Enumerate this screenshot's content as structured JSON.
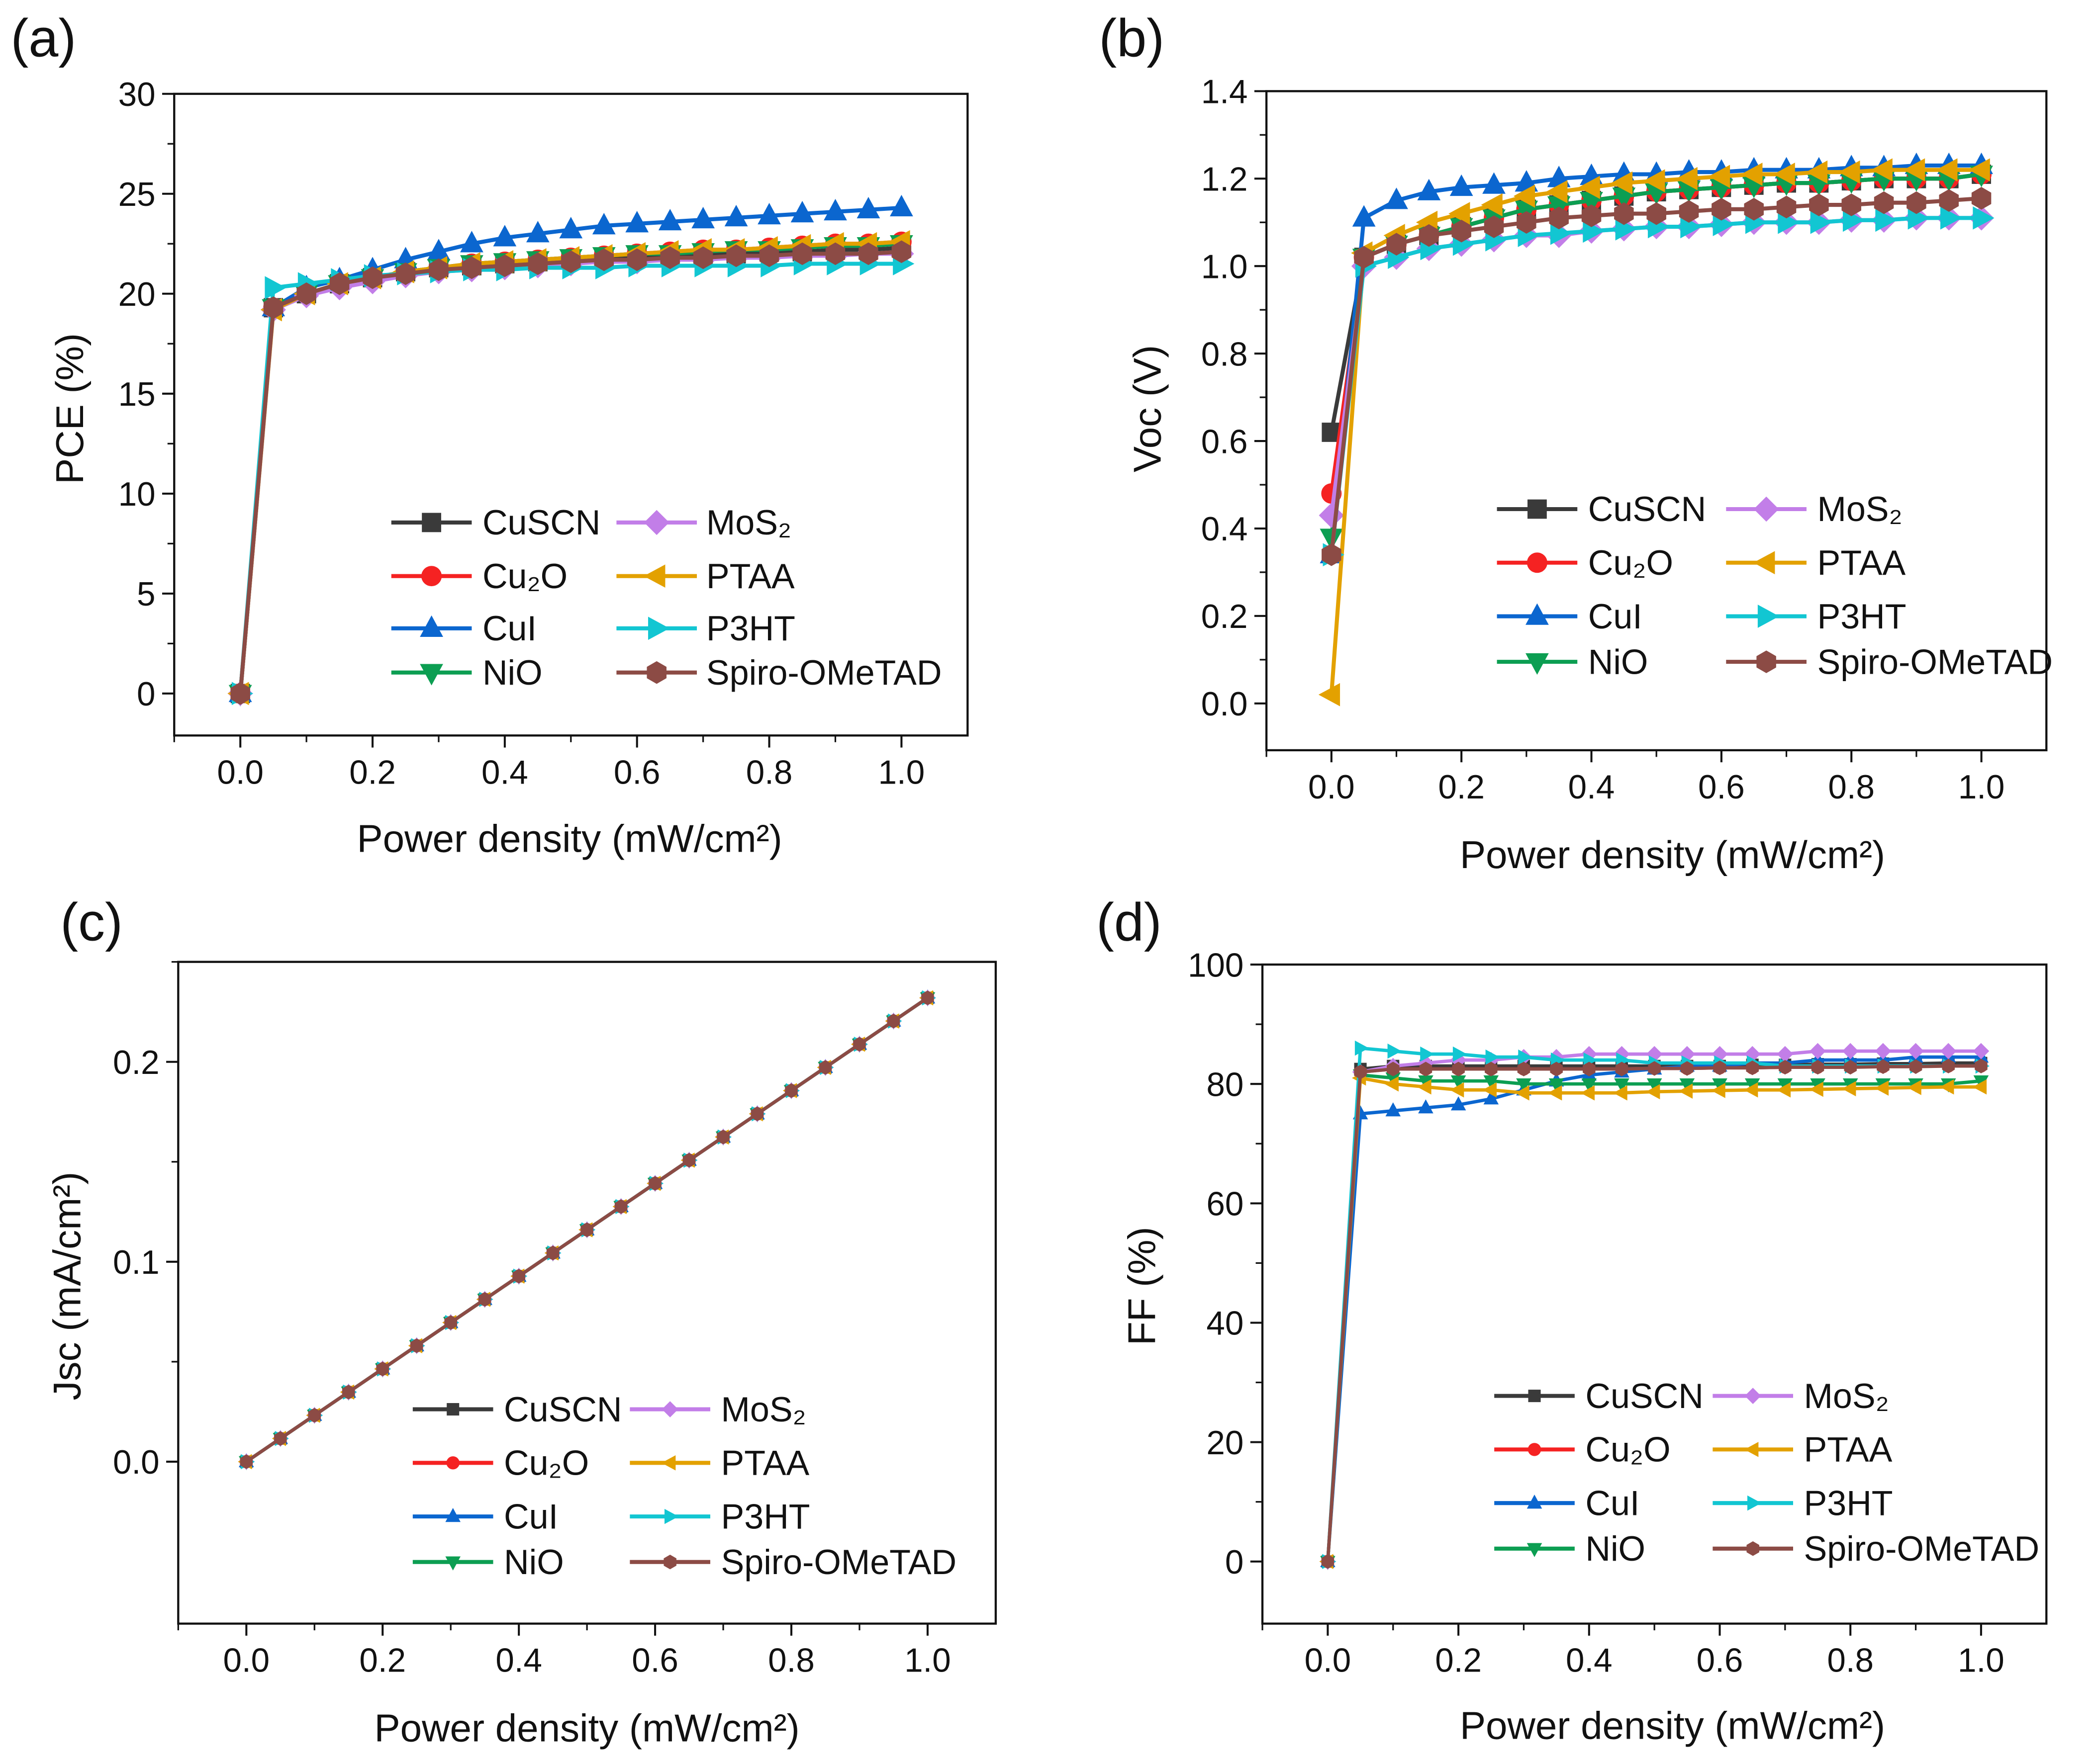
{
  "legend_order": [
    "CuSCN",
    "Cu2O",
    "CuI",
    "NiO",
    "MoS2",
    "PTAA",
    "P3HT",
    "Spiro"
  ],
  "series_style": {
    "CuSCN": {
      "label": "CuSCN",
      "color": "#3a3a3a",
      "marker": "square"
    },
    "Cu2O": {
      "label": "Cu₂O",
      "color": "#f52222",
      "marker": "circle"
    },
    "CuI": {
      "label": "CuI",
      "color": "#0b66cf",
      "marker": "triangle-up"
    },
    "NiO": {
      "label": "NiO",
      "color": "#0c9e52",
      "marker": "triangle-down"
    },
    "MoS2": {
      "label": "MoS₂",
      "color": "#c27ee8",
      "marker": "diamond"
    },
    "PTAA": {
      "label": "PTAA",
      "color": "#e3a100",
      "marker": "triangle-left"
    },
    "P3HT": {
      "label": "P3HT",
      "color": "#12c6d2",
      "marker": "triangle-right"
    },
    "Spiro": {
      "label": "Spiro-OMeTAD",
      "color": "#8c4b45",
      "marker": "hexagon"
    }
  },
  "chart_data": [
    {
      "panel": "(a)",
      "type": "line",
      "xlabel": "Power density (mW/cm²)",
      "ylabel": "PCE (%)",
      "xlim": [
        -0.1,
        1.1
      ],
      "ylim": [
        -2.1,
        30
      ],
      "xticks": [
        "0.0",
        "0.2",
        "0.4",
        "0.6",
        "0.8",
        "1.0"
      ],
      "yticks": [
        "0",
        "5",
        "10",
        "15",
        "20",
        "25",
        "30"
      ],
      "x": [
        0,
        0.05,
        0.1,
        0.15,
        0.2,
        0.25,
        0.3,
        0.35,
        0.4,
        0.45,
        0.5,
        0.55,
        0.6,
        0.65,
        0.7,
        0.75,
        0.8,
        0.85,
        0.9,
        0.95,
        1.0
      ],
      "series": {
        "CuSCN": [
          0,
          19.3,
          20.0,
          20.5,
          20.8,
          21.1,
          21.3,
          21.4,
          21.5,
          21.6,
          21.7,
          21.8,
          21.9,
          21.9,
          22.0,
          22.0,
          22.1,
          22.1,
          22.2,
          22.2,
          22.3
        ],
        "Cu2O": [
          0,
          19.3,
          20.0,
          20.5,
          20.8,
          21.1,
          21.3,
          21.5,
          21.6,
          21.7,
          21.8,
          21.9,
          22.0,
          22.1,
          22.2,
          22.2,
          22.3,
          22.4,
          22.5,
          22.5,
          22.6
        ],
        "CuI": [
          0,
          19.3,
          20.3,
          20.7,
          21.2,
          21.7,
          22.1,
          22.5,
          22.8,
          23.0,
          23.2,
          23.4,
          23.5,
          23.6,
          23.7,
          23.8,
          23.9,
          24.0,
          24.1,
          24.2,
          24.3
        ],
        "NiO": [
          0,
          19.3,
          20.0,
          20.5,
          20.8,
          21.1,
          21.3,
          21.5,
          21.6,
          21.7,
          21.8,
          21.9,
          22.0,
          22.0,
          22.1,
          22.2,
          22.2,
          22.3,
          22.4,
          22.4,
          22.5
        ],
        "MoS2": [
          0,
          19.2,
          19.9,
          20.3,
          20.6,
          20.9,
          21.1,
          21.2,
          21.3,
          21.4,
          21.5,
          21.6,
          21.6,
          21.7,
          21.7,
          21.8,
          21.8,
          21.9,
          21.9,
          22.0,
          22.0
        ],
        "PTAA": [
          0,
          19.2,
          20.0,
          20.5,
          20.8,
          21.1,
          21.3,
          21.5,
          21.6,
          21.7,
          21.8,
          21.9,
          22.0,
          22.1,
          22.2,
          22.2,
          22.3,
          22.4,
          22.5,
          22.5,
          22.6
        ],
        "P3HT": [
          0,
          20.3,
          20.5,
          20.7,
          20.9,
          21.0,
          21.1,
          21.2,
          21.2,
          21.3,
          21.3,
          21.3,
          21.4,
          21.4,
          21.4,
          21.4,
          21.4,
          21.5,
          21.5,
          21.5,
          21.5
        ],
        "Spiro": [
          0,
          19.3,
          20.0,
          20.5,
          20.8,
          21.0,
          21.2,
          21.3,
          21.4,
          21.5,
          21.6,
          21.7,
          21.7,
          21.8,
          21.8,
          21.9,
          21.9,
          22.0,
          22.0,
          22.0,
          22.1
        ]
      }
    },
    {
      "panel": "(b)",
      "type": "line",
      "xlabel": "Power density (mW/cm²)",
      "ylabel": "Voc (V)",
      "xlim": [
        -0.1,
        1.1
      ],
      "ylim": [
        -0.107,
        1.4
      ],
      "xticks": [
        "0.0",
        "0.2",
        "0.4",
        "0.6",
        "0.8",
        "1.0"
      ],
      "yticks": [
        "0.0",
        "0.2",
        "0.4",
        "0.6",
        "0.8",
        "1.0",
        "1.2",
        "1.4"
      ],
      "x": [
        0,
        0.05,
        0.1,
        0.15,
        0.2,
        0.25,
        0.3,
        0.35,
        0.4,
        0.45,
        0.5,
        0.55,
        0.6,
        0.65,
        0.7,
        0.75,
        0.8,
        0.85,
        0.9,
        0.95,
        1.0
      ],
      "series": {
        "CuSCN": [
          0.62,
          1.02,
          1.05,
          1.07,
          1.09,
          1.11,
          1.13,
          1.14,
          1.15,
          1.16,
          1.17,
          1.175,
          1.18,
          1.185,
          1.19,
          1.19,
          1.195,
          1.2,
          1.2,
          1.2,
          1.21
        ],
        "Cu2O": [
          0.48,
          1.02,
          1.05,
          1.07,
          1.09,
          1.11,
          1.13,
          1.14,
          1.15,
          1.16,
          1.17,
          1.175,
          1.18,
          1.185,
          1.19,
          1.19,
          1.195,
          1.2,
          1.2,
          1.2,
          1.21
        ],
        "CuI": [
          0.34,
          1.11,
          1.15,
          1.17,
          1.18,
          1.185,
          1.19,
          1.2,
          1.205,
          1.21,
          1.21,
          1.215,
          1.215,
          1.22,
          1.22,
          1.22,
          1.225,
          1.225,
          1.23,
          1.23,
          1.23
        ],
        "NiO": [
          0.38,
          1.02,
          1.05,
          1.07,
          1.09,
          1.11,
          1.13,
          1.14,
          1.15,
          1.16,
          1.17,
          1.175,
          1.18,
          1.185,
          1.19,
          1.19,
          1.195,
          1.2,
          1.2,
          1.2,
          1.21
        ],
        "MoS2": [
          0.43,
          1.0,
          1.02,
          1.04,
          1.05,
          1.06,
          1.07,
          1.07,
          1.08,
          1.085,
          1.09,
          1.09,
          1.095,
          1.1,
          1.1,
          1.1,
          1.105,
          1.105,
          1.11,
          1.11,
          1.11
        ],
        "PTAA": [
          0.02,
          1.03,
          1.07,
          1.1,
          1.12,
          1.14,
          1.16,
          1.17,
          1.18,
          1.19,
          1.195,
          1.2,
          1.205,
          1.21,
          1.21,
          1.215,
          1.215,
          1.22,
          1.22,
          1.22,
          1.22
        ],
        "P3HT": [
          0.34,
          1.0,
          1.02,
          1.04,
          1.05,
          1.06,
          1.07,
          1.075,
          1.08,
          1.085,
          1.09,
          1.09,
          1.095,
          1.1,
          1.1,
          1.1,
          1.105,
          1.105,
          1.11,
          1.11,
          1.11
        ],
        "Spiro": [
          0.34,
          1.02,
          1.05,
          1.07,
          1.08,
          1.09,
          1.1,
          1.11,
          1.115,
          1.12,
          1.12,
          1.125,
          1.13,
          1.13,
          1.135,
          1.14,
          1.14,
          1.145,
          1.145,
          1.15,
          1.155
        ]
      }
    },
    {
      "panel": "(c)",
      "type": "line",
      "xlabel": "Power density (mW/cm²)",
      "ylabel": "Jsc (mA/cm²)",
      "xlim": [
        -0.1,
        1.1
      ],
      "ylim": [
        -0.081,
        0.25
      ],
      "xticks": [
        "0.0",
        "0.2",
        "0.4",
        "0.6",
        "0.8",
        "1.0"
      ],
      "yticks": [
        "0.0",
        "0.1",
        "0.2"
      ],
      "x": [
        0,
        0.05,
        0.1,
        0.15,
        0.2,
        0.25,
        0.3,
        0.35,
        0.4,
        0.45,
        0.5,
        0.55,
        0.6,
        0.65,
        0.7,
        0.75,
        0.8,
        0.85,
        0.9,
        0.95,
        1.0
      ],
      "series": {
        "CuSCN": [
          0,
          0.0116,
          0.0232,
          0.0348,
          0.0464,
          0.058,
          0.0696,
          0.0812,
          0.0928,
          0.1044,
          0.116,
          0.1276,
          0.1392,
          0.1508,
          0.1624,
          0.174,
          0.1856,
          0.1972,
          0.2088,
          0.2204,
          0.232
        ],
        "Cu2O": [
          0,
          0.0116,
          0.0232,
          0.0348,
          0.0464,
          0.058,
          0.0696,
          0.0812,
          0.0928,
          0.1044,
          0.116,
          0.1276,
          0.1392,
          0.1508,
          0.1624,
          0.174,
          0.1856,
          0.1972,
          0.2088,
          0.2204,
          0.232
        ],
        "CuI": [
          0,
          0.0116,
          0.0232,
          0.0348,
          0.0464,
          0.058,
          0.0696,
          0.0812,
          0.0928,
          0.1044,
          0.116,
          0.1276,
          0.1392,
          0.1508,
          0.1624,
          0.174,
          0.1856,
          0.1972,
          0.2088,
          0.2204,
          0.232
        ],
        "NiO": [
          0,
          0.0116,
          0.0232,
          0.0348,
          0.0464,
          0.058,
          0.0696,
          0.0812,
          0.0928,
          0.1044,
          0.116,
          0.1276,
          0.1392,
          0.1508,
          0.1624,
          0.174,
          0.1856,
          0.1972,
          0.2088,
          0.2204,
          0.232
        ],
        "MoS2": [
          0,
          0.0116,
          0.0232,
          0.0348,
          0.0464,
          0.058,
          0.0696,
          0.0812,
          0.0928,
          0.1044,
          0.116,
          0.1276,
          0.1392,
          0.1508,
          0.1624,
          0.174,
          0.1856,
          0.1972,
          0.2088,
          0.2204,
          0.232
        ],
        "PTAA": [
          0,
          0.0116,
          0.0232,
          0.0348,
          0.0464,
          0.058,
          0.0696,
          0.0812,
          0.0928,
          0.1044,
          0.116,
          0.1276,
          0.1392,
          0.1508,
          0.1624,
          0.174,
          0.1856,
          0.1972,
          0.2088,
          0.2204,
          0.232
        ],
        "P3HT": [
          0,
          0.0116,
          0.0232,
          0.0348,
          0.0464,
          0.058,
          0.0696,
          0.0812,
          0.0928,
          0.1044,
          0.116,
          0.1276,
          0.1392,
          0.1508,
          0.1624,
          0.174,
          0.1856,
          0.1972,
          0.2088,
          0.2204,
          0.232
        ],
        "Spiro": [
          0,
          0.0116,
          0.0232,
          0.0348,
          0.0464,
          0.058,
          0.0696,
          0.0812,
          0.0928,
          0.1044,
          0.116,
          0.1276,
          0.1392,
          0.1508,
          0.1624,
          0.174,
          0.1856,
          0.1972,
          0.2088,
          0.2204,
          0.232
        ]
      }
    },
    {
      "panel": "(d)",
      "type": "line",
      "xlabel": "Power density (mW/cm²)",
      "ylabel": "FF (%)",
      "xlim": [
        -0.1,
        1.1
      ],
      "ylim": [
        -10.4,
        100
      ],
      "xticks": [
        "0.0",
        "0.2",
        "0.4",
        "0.6",
        "0.8",
        "1.0"
      ],
      "yticks": [
        "0",
        "20",
        "40",
        "60",
        "80",
        "100"
      ],
      "x": [
        0,
        0.05,
        0.1,
        0.15,
        0.2,
        0.25,
        0.3,
        0.35,
        0.4,
        0.45,
        0.5,
        0.55,
        0.6,
        0.65,
        0.7,
        0.75,
        0.8,
        0.85,
        0.9,
        0.95,
        1.0
      ],
      "series": {
        "CuSCN": [
          0,
          82.5,
          83,
          83,
          83,
          83,
          83,
          83,
          83,
          83,
          83,
          83,
          83,
          83.2,
          83.2,
          83.3,
          83.3,
          83.4,
          83.4,
          83.5,
          83.5
        ],
        "Cu2O": [
          0,
          82,
          82.5,
          82.5,
          82.5,
          82.5,
          82.5,
          82.5,
          82.5,
          82.5,
          82.6,
          82.6,
          82.7,
          82.7,
          82.8,
          82.8,
          82.9,
          82.9,
          83,
          83,
          83
        ],
        "CuI": [
          0,
          75,
          75.5,
          76,
          76.5,
          77.5,
          79,
          80.5,
          81.5,
          82,
          82.5,
          83,
          83,
          83.5,
          83.5,
          84,
          84,
          84,
          84.5,
          84.5,
          84.5
        ],
        "NiO": [
          0,
          81.5,
          81,
          80.5,
          80.5,
          80.5,
          80,
          80,
          80,
          80,
          80,
          80,
          80,
          80,
          80,
          80,
          80,
          80,
          80,
          80,
          80.5
        ],
        "MoS2": [
          0,
          82,
          83,
          83.5,
          84,
          84,
          84.5,
          84.5,
          85,
          85,
          85,
          85,
          85,
          85,
          85,
          85.5,
          85.5,
          85.5,
          85.5,
          85.5,
          85.5
        ],
        "PTAA": [
          0,
          81,
          80,
          79.5,
          79,
          79,
          78.5,
          78.5,
          78.5,
          78.5,
          78.7,
          78.8,
          78.9,
          79,
          79,
          79.1,
          79.2,
          79.3,
          79.4,
          79.5,
          79.5
        ],
        "P3HT": [
          0,
          86,
          85.5,
          85,
          85,
          84.5,
          84.5,
          84,
          84,
          84,
          83.5,
          83.5,
          83.5,
          83.5,
          83,
          83,
          83,
          83,
          83,
          83,
          83
        ],
        "Spiro": [
          0,
          82,
          82.5,
          82.5,
          82.5,
          82.5,
          82.5,
          82.5,
          82.5,
          82.5,
          82.6,
          82.6,
          82.7,
          82.7,
          82.8,
          82.8,
          82.8,
          82.9,
          82.9,
          83,
          83
        ]
      }
    }
  ]
}
